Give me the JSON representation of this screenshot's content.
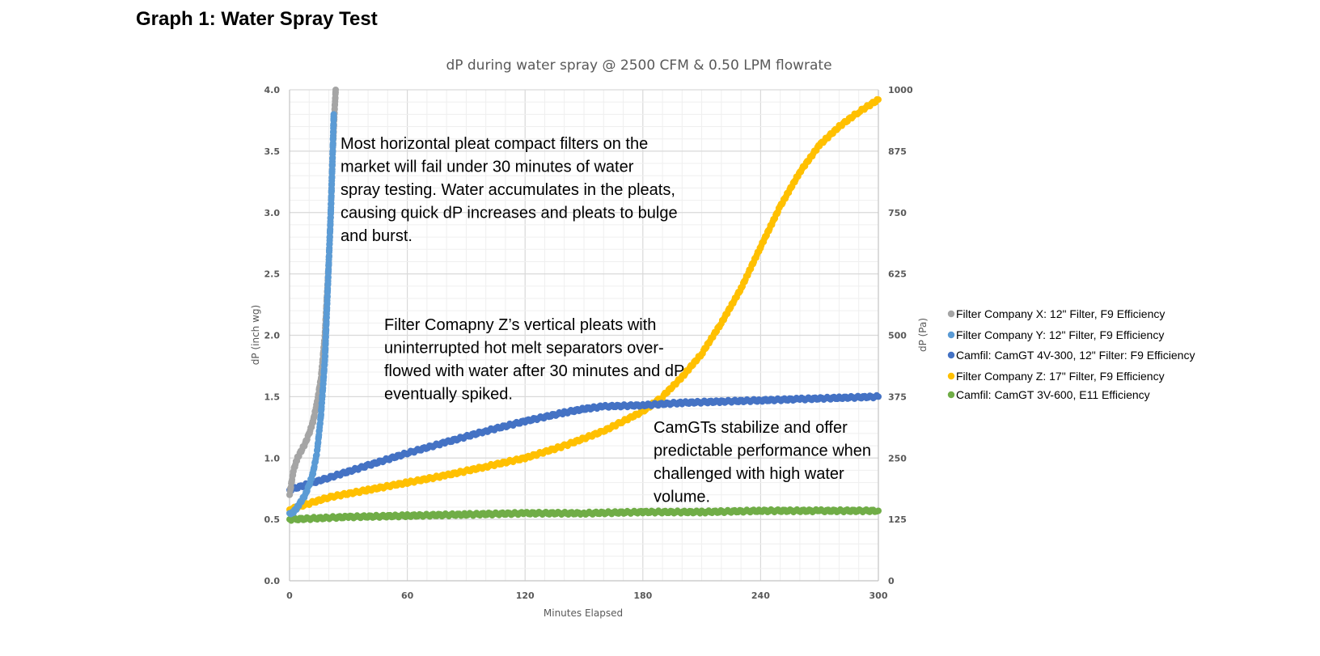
{
  "page": {
    "heading": "Graph 1: Water Spray Test"
  },
  "chart_data": {
    "type": "scatter",
    "title": "dP during water spray @ 2500 CFM & 0.50 LPM flowrate",
    "xlabel": "Minutes Elapsed",
    "ylabel": "dP (inch wg)",
    "y2label": "dP (Pa)",
    "xlim": [
      0,
      300
    ],
    "ylim": [
      0,
      4.0
    ],
    "y2lim": [
      0,
      1000
    ],
    "xticks": [
      "0",
      "60",
      "120",
      "180",
      "240",
      "300"
    ],
    "yticks": [
      "0.0",
      "0.5",
      "1.0",
      "1.5",
      "2.0",
      "2.5",
      "3.0",
      "3.5",
      "4.0"
    ],
    "y2ticks": [
      "0",
      "125",
      "250",
      "375",
      "500",
      "625",
      "750",
      "875",
      "1000"
    ],
    "grid": true,
    "legend_position": "right",
    "series": [
      {
        "name": "Filter Company X: 12\" Filter, F9 Efficiency",
        "color": "#a5a5a5",
        "x": [
          0,
          2,
          4,
          6,
          8,
          10,
          12,
          14,
          16,
          18,
          19,
          20,
          21,
          22,
          23,
          23.5
        ],
        "y": [
          0.7,
          0.9,
          1.0,
          1.06,
          1.12,
          1.2,
          1.3,
          1.45,
          1.65,
          2.0,
          2.3,
          2.6,
          3.0,
          3.5,
          3.85,
          4.0
        ]
      },
      {
        "name": "Filter Company Y: 12\" Filter, F9 Efficiency",
        "color": "#5b9bd5",
        "x": [
          0,
          2,
          4,
          6,
          8,
          10,
          12,
          14,
          16,
          18,
          19,
          20,
          21,
          22,
          22.5
        ],
        "y": [
          0.55,
          0.56,
          0.6,
          0.65,
          0.7,
          0.78,
          0.88,
          1.05,
          1.35,
          1.8,
          2.2,
          2.6,
          3.0,
          3.5,
          3.8
        ]
      },
      {
        "name": "Camfil: CamGT 4V-300, 12\" Filter: F9 Efficiency",
        "color": "#4472c4",
        "x": [
          0,
          20,
          40,
          60,
          80,
          100,
          120,
          140,
          150,
          160,
          180,
          200,
          220,
          240,
          260,
          280,
          300
        ],
        "y": [
          0.74,
          0.84,
          0.94,
          1.04,
          1.13,
          1.22,
          1.3,
          1.37,
          1.4,
          1.42,
          1.43,
          1.45,
          1.46,
          1.47,
          1.48,
          1.49,
          1.5
        ]
      },
      {
        "name": "Filter Company Z: 17\" Filter, F9 Efficiency",
        "color": "#ffc000",
        "x": [
          0,
          20,
          40,
          60,
          80,
          100,
          120,
          140,
          160,
          170,
          180,
          190,
          200,
          210,
          220,
          230,
          240,
          250,
          260,
          270,
          280,
          290,
          300
        ],
        "y": [
          0.58,
          0.68,
          0.74,
          0.8,
          0.86,
          0.93,
          1.0,
          1.1,
          1.22,
          1.3,
          1.38,
          1.5,
          1.66,
          1.85,
          2.1,
          2.38,
          2.72,
          3.05,
          3.33,
          3.55,
          3.7,
          3.82,
          3.92
        ]
      },
      {
        "name": "Camfil: CamGT 3V-600, E11 Efficiency",
        "color": "#70ad47",
        "x": [
          0,
          30,
          60,
          90,
          120,
          150,
          180,
          210,
          240,
          270,
          300
        ],
        "y": [
          0.5,
          0.52,
          0.53,
          0.54,
          0.55,
          0.55,
          0.56,
          0.56,
          0.57,
          0.57,
          0.57
        ]
      }
    ],
    "annotations": [
      {
        "lines": [
          "Most horizontal pleat compact filters on the",
          "market will fail under 30 minutes of water",
          "spray testing. Water accumulates in the pleats,",
          "causing quick dP increases and pleats to bulge",
          "and burst."
        ]
      },
      {
        "lines": [
          "Filter Comapny Z’s vertical pleats with",
          "uninterrupted hot melt separators over-",
          "flowed with water after 30 minutes and dP",
          "eventually spiked."
        ]
      },
      {
        "lines": [
          "CamGTs stabilize and offer",
          "predictable performance when",
          "challenged with high water",
          "volume."
        ]
      }
    ]
  }
}
